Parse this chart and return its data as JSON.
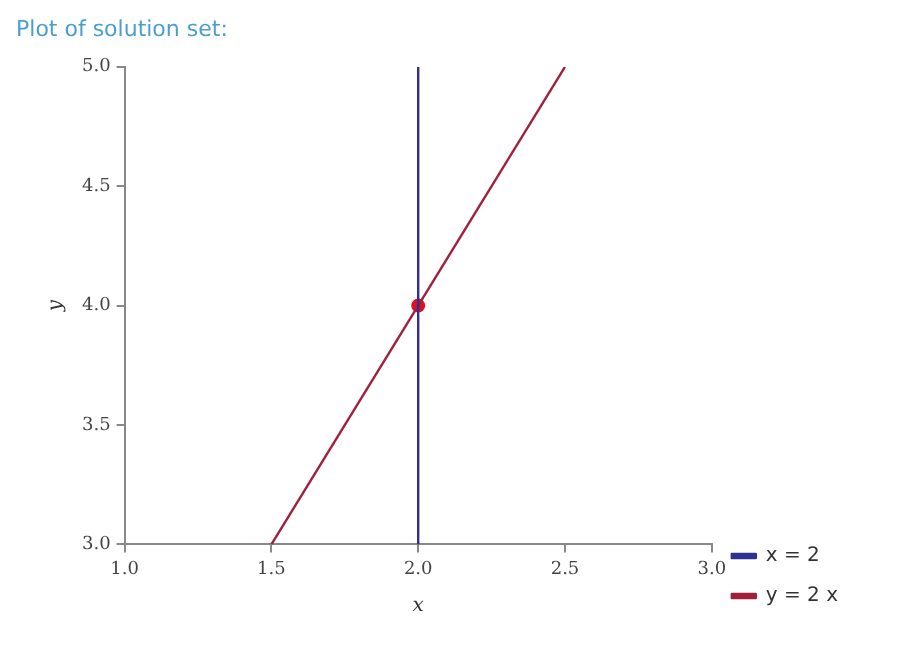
{
  "chart_data": {
    "type": "line",
    "title": "Plot of solution set:",
    "xlabel": "x",
    "ylabel": "y",
    "xlim": [
      1,
      3
    ],
    "xticks": [
      {
        "value": 1,
        "label": "1.0"
      },
      {
        "value": 1.5,
        "label": "1.5"
      },
      {
        "value": 2,
        "label": "2.0"
      },
      {
        "value": 2.5,
        "label": "2.5"
      },
      {
        "value": 3,
        "label": "3.0"
      }
    ],
    "ylim": [
      3,
      5
    ],
    "yticks": [
      {
        "value": 3,
        "label": "3.0"
      },
      {
        "value": 3.5,
        "label": "3.5"
      },
      {
        "value": 4,
        "label": "4.0"
      },
      {
        "value": 4.5,
        "label": "4.5"
      },
      {
        "value": 5,
        "label": "5.0"
      }
    ],
    "series": [
      {
        "name": "x = 2",
        "color": "#2e3192",
        "x": [
          2,
          2
        ],
        "values": [
          3,
          5
        ]
      },
      {
        "name": "y = 2 x",
        "color": "#a0203c",
        "x": [
          1.5,
          2.5
        ],
        "values": [
          3,
          5
        ]
      },
      {
        "type": "scatter",
        "color": "#e0101e",
        "x": [
          2
        ],
        "values": [
          4
        ],
        "marker": "circle"
      }
    ],
    "grid": false,
    "legend": "bottom right",
    "line_style": "solid"
  }
}
